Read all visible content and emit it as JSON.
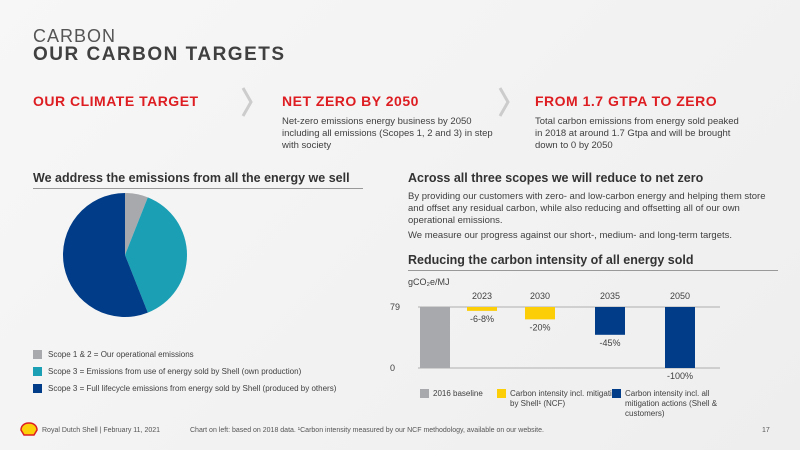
{
  "header": {
    "kicker": "CARBON",
    "title": "OUR CARBON TARGETS"
  },
  "targets": [
    {
      "heading": "OUR CLIMATE TARGET"
    },
    {
      "heading": "NET ZERO BY 2050",
      "text": "Net-zero emissions energy business by 2050 including all emissions (Scopes 1, 2 and 3) in step with society"
    },
    {
      "heading": "FROM 1.7 GTPA TO ZERO",
      "text": "Total carbon emissions from energy sold peaked in 2018 at around 1.7 Gtpa and will be brought down to 0 by 2050"
    }
  ],
  "left": {
    "heading": "We address the emissions from all the energy we sell"
  },
  "right": {
    "heading": "Across all three scopes we will reduce to net zero",
    "paragraphs": [
      "By providing our customers with zero- and low-carbon energy and helping them store and offset any residual carbon, while also reducing and offsetting all of our own operational emissions.",
      "We measure our progress against our short-, medium- and long-term targets."
    ],
    "chart_heading": "Reducing the carbon intensity of all energy sold"
  },
  "chart_data": [
    {
      "type": "pie",
      "categories": [
        "Scope 1 & 2 = Our operational emissions",
        "Scope 3 = Emissions from use of energy sold by Shell (own production)",
        "Scope 3 = Full lifecycle emissions from energy sold by Shell (produced by others)"
      ],
      "values": [
        6,
        38,
        56
      ],
      "colors": [
        "#a7a9ac",
        "#1a9fb5",
        "#003c88"
      ]
    },
    {
      "type": "waterfall",
      "y_label": "gCO₂e/MJ",
      "categories": [
        null,
        "2023",
        "2030",
        "2035",
        "2050"
      ],
      "series": [
        {
          "name": "2016 baseline",
          "color": "#a7a9ac",
          "values": [
            79,
            null,
            null,
            null,
            null
          ]
        },
        {
          "name": "Carbon intensity incl. mitigation by Shell¹ (NCF)",
          "color": "#fbce07",
          "values": [
            null,
            -5,
            -16,
            null,
            null
          ]
        },
        {
          "name": "Carbon intensity incl. all mitigation actions (Shell & customers)",
          "color": "#003c88",
          "values": [
            null,
            null,
            null,
            -36,
            -79
          ]
        }
      ],
      "annotations": [
        null,
        "-6-8%",
        "-20%",
        "-45%",
        "-100%"
      ],
      "ylim": [
        0,
        79
      ],
      "yticks": [
        0,
        79
      ]
    }
  ],
  "footer": {
    "left": "Royal Dutch Shell | February 11, 2021",
    "note": "Chart on left: based on 2018 data. ¹Carbon intensity measured by our NCF methodology, available on our website.",
    "page": "17"
  }
}
